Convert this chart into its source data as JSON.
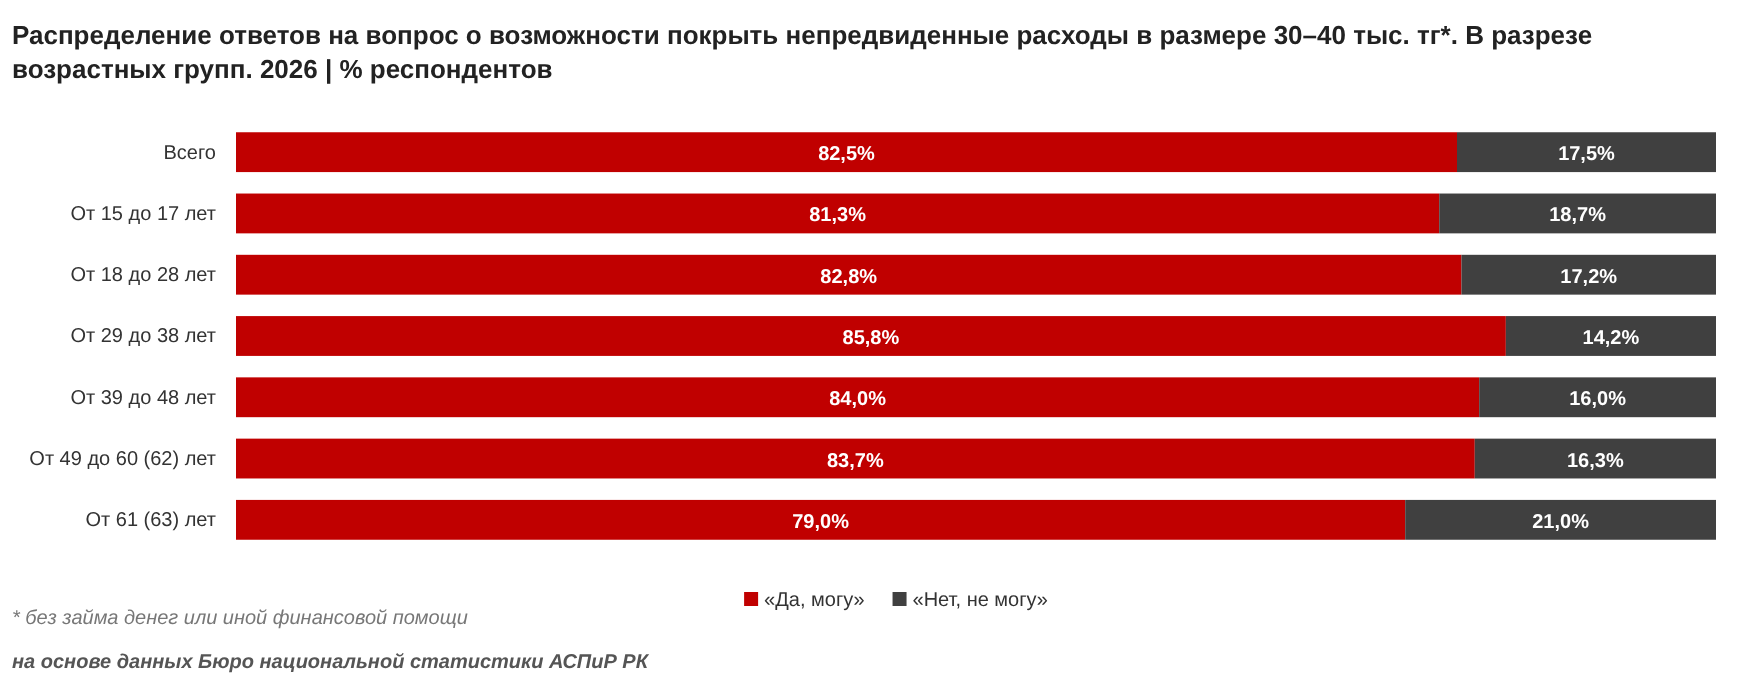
{
  "chart_data": {
    "type": "bar",
    "orientation": "horizontal",
    "stacked": true,
    "title": "Распределение ответов на вопрос о возможности покрыть непредвиденные расходы в размере 30–40 тыс. тг*. В разрезе возрастных групп. 2026 | % респондентов",
    "categories": [
      "Всего",
      "От 15 до 17 лет",
      "От 18 до 28 лет",
      "От 29 до 38 лет",
      "От 39 до 48 лет",
      "От 49 до 60 (62) лет",
      "От 61 (63) лет"
    ],
    "series": [
      {
        "name": "«Да, могу»",
        "color": "#c00000",
        "values": [
          82.5,
          81.3,
          82.8,
          85.8,
          84.0,
          83.7,
          79.0
        ],
        "value_labels": [
          "82,5%",
          "81,3%",
          "82,8%",
          "85,8%",
          "84,0%",
          "83,7%",
          "79,0%"
        ]
      },
      {
        "name": "«Нет, не могу»",
        "color": "#404040",
        "values": [
          17.5,
          18.7,
          17.2,
          14.2,
          16.0,
          16.3,
          21.0
        ],
        "value_labels": [
          "17,5%",
          "18,7%",
          "17,2%",
          "14,2%",
          "16,0%",
          "16,3%",
          "21,0%"
        ]
      }
    ],
    "xlim": [
      0,
      100
    ],
    "legend": "bottom",
    "grid": false,
    "annotations": [
      "* без займа денег или иной финансовой помощи",
      "на основе данных Бюро национальной статистики АСПиР РК"
    ]
  }
}
